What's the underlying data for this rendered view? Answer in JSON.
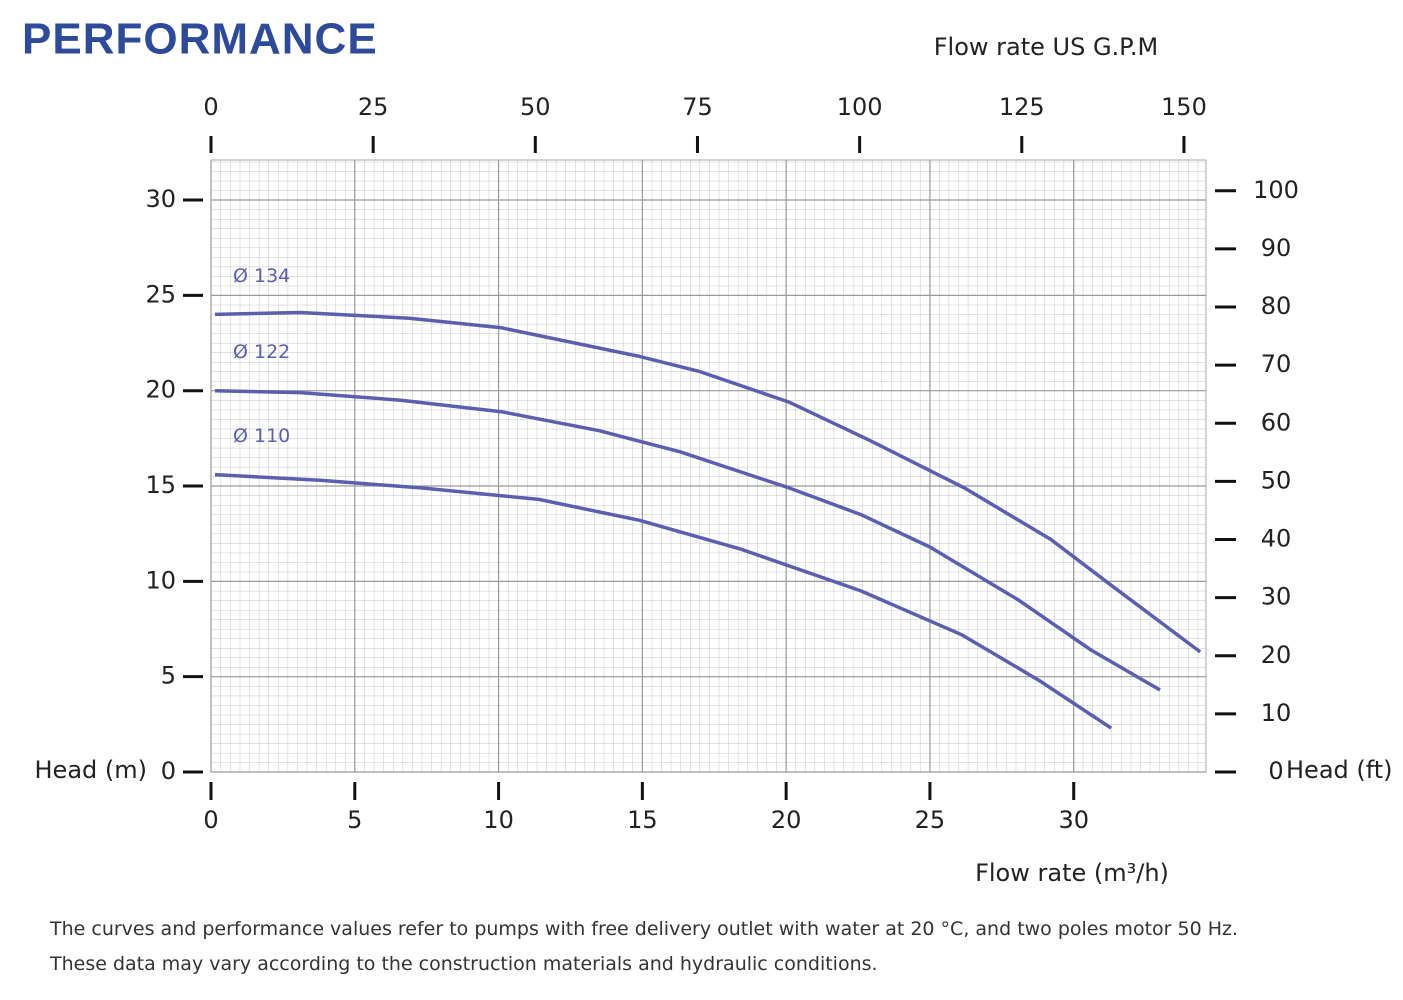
{
  "chart_data": {
    "type": "line",
    "title": "PERFORMANCE",
    "x2_label": "Flow rate US  G.P.M",
    "x_label": "Flow rate  (m³/h)",
    "y_label": "Head (m)",
    "y2_label": "Head (ft)",
    "xlim": [
      0,
      34.6
    ],
    "xticks": [
      0,
      5,
      10,
      15,
      20,
      25,
      30
    ],
    "x2lim": [
      0,
      153.4
    ],
    "x2ticks": [
      0,
      25,
      50,
      75,
      100,
      125,
      150
    ],
    "ylim": [
      0,
      32.1
    ],
    "yticks": [
      0,
      5,
      10,
      15,
      20,
      25,
      30
    ],
    "y2lim": [
      0,
      105.3
    ],
    "y2ticks": [
      0,
      10,
      20,
      30,
      40,
      50,
      60,
      70,
      80,
      90,
      100
    ],
    "grid": true,
    "series": [
      {
        "name": "Ø 134",
        "color": "#5a5fb0",
        "x": [
          0.14,
          3.1,
          6.9,
          10.1,
          14.9,
          17.0,
          20.1,
          22.9,
          26.2,
          29.2,
          31.3,
          34.4
        ],
        "values": [
          24.0,
          24.1,
          23.8,
          23.3,
          21.8,
          21.0,
          19.4,
          17.4,
          14.9,
          12.2,
          9.8,
          6.3
        ]
      },
      {
        "name": "Ø 122",
        "color": "#5a5fb0",
        "x": [
          0.14,
          3.1,
          6.6,
          10.1,
          13.5,
          16.3,
          20.1,
          22.6,
          25.0,
          28.1,
          30.6,
          33.0
        ],
        "values": [
          20.0,
          19.9,
          19.5,
          18.9,
          17.9,
          16.8,
          14.9,
          13.5,
          11.8,
          9.0,
          6.4,
          4.3
        ]
      },
      {
        "name": "Ø 110",
        "color": "#5a5fb0",
        "x": [
          0.14,
          3.8,
          7.3,
          11.4,
          14.9,
          18.4,
          22.6,
          26.1,
          28.8,
          31.3
        ],
        "values": [
          15.6,
          15.3,
          14.9,
          14.3,
          13.2,
          11.7,
          9.5,
          7.2,
          4.8,
          2.3
        ]
      }
    ],
    "notes": [
      "The curves and performance values refer to pumps with free delivery outlet with water at 20 °C, and two poles motor 50 Hz.",
      "These data may vary according to the construction materials and hydraulic conditions."
    ]
  }
}
